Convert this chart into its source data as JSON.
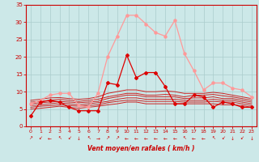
{
  "background_color": "#cce8e8",
  "grid_color": "#aacccc",
  "xlabel": "Vent moyen/en rafales ( km/h )",
  "xlim": [
    -0.5,
    23.5
  ],
  "ylim": [
    0,
    35
  ],
  "xticks": [
    0,
    1,
    2,
    3,
    4,
    5,
    6,
    7,
    8,
    9,
    10,
    11,
    12,
    13,
    14,
    15,
    16,
    17,
    18,
    19,
    20,
    21,
    22,
    23
  ],
  "yticks": [
    0,
    5,
    10,
    15,
    20,
    25,
    30,
    35
  ],
  "line_light": {
    "color": "#ff9999",
    "x": [
      0,
      1,
      2,
      3,
      4,
      5,
      6,
      7,
      8,
      9,
      10,
      11,
      12,
      13,
      14,
      15,
      16,
      17,
      18,
      19,
      20,
      21,
      22,
      23
    ],
    "y": [
      6.5,
      7.5,
      9.0,
      9.5,
      9.5,
      6.0,
      5.5,
      9.5,
      20.0,
      26.0,
      32.0,
      32.0,
      29.5,
      27.0,
      26.0,
      30.5,
      21.0,
      16.0,
      10.5,
      12.5,
      12.5,
      11.0,
      10.5,
      8.5
    ]
  },
  "line_dark": {
    "color": "#dd0000",
    "x": [
      0,
      1,
      2,
      3,
      4,
      5,
      6,
      7,
      8,
      9,
      10,
      11,
      12,
      13,
      14,
      15,
      16,
      17,
      18,
      19,
      20,
      21,
      22,
      23
    ],
    "y": [
      3.0,
      7.0,
      7.5,
      7.0,
      5.5,
      4.5,
      4.5,
      4.5,
      12.5,
      12.0,
      20.5,
      14.0,
      15.5,
      15.5,
      11.5,
      6.5,
      6.5,
      9.0,
      8.5,
      5.5,
      7.0,
      6.5,
      5.5,
      5.5
    ]
  },
  "lines_flat": [
    {
      "color": "#cc0000",
      "x": [
        0,
        1,
        2,
        3,
        4,
        5,
        6,
        7,
        8,
        9,
        10,
        11,
        12,
        13,
        14,
        15,
        16,
        17,
        18,
        19,
        20,
        21,
        22,
        23
      ],
      "y": [
        7.5,
        7.8,
        8.2,
        8.3,
        8.0,
        7.8,
        8.0,
        8.5,
        9.5,
        10.0,
        10.5,
        10.5,
        10.0,
        10.0,
        10.2,
        10.0,
        9.5,
        9.5,
        9.5,
        9.8,
        9.5,
        9.0,
        8.5,
        8.0
      ]
    },
    {
      "color": "#cc0000",
      "x": [
        0,
        1,
        2,
        3,
        4,
        5,
        6,
        7,
        8,
        9,
        10,
        11,
        12,
        13,
        14,
        15,
        16,
        17,
        18,
        19,
        20,
        21,
        22,
        23
      ],
      "y": [
        7.0,
        7.2,
        7.5,
        7.8,
        7.5,
        7.2,
        7.5,
        7.8,
        8.5,
        9.0,
        9.5,
        9.5,
        9.0,
        9.0,
        9.2,
        9.0,
        8.5,
        9.0,
        9.0,
        9.2,
        8.8,
        8.5,
        8.0,
        7.5
      ]
    },
    {
      "color": "#cc0000",
      "x": [
        0,
        1,
        2,
        3,
        4,
        5,
        6,
        7,
        8,
        9,
        10,
        11,
        12,
        13,
        14,
        15,
        16,
        17,
        18,
        19,
        20,
        21,
        22,
        23
      ],
      "y": [
        6.5,
        6.8,
        7.0,
        7.2,
        7.0,
        6.8,
        7.0,
        7.2,
        8.0,
        8.5,
        9.0,
        9.0,
        8.5,
        8.5,
        8.5,
        8.5,
        8.0,
        8.2,
        8.2,
        8.5,
        8.0,
        8.0,
        7.5,
        7.0
      ]
    },
    {
      "color": "#cc0000",
      "x": [
        0,
        1,
        2,
        3,
        4,
        5,
        6,
        7,
        8,
        9,
        10,
        11,
        12,
        13,
        14,
        15,
        16,
        17,
        18,
        19,
        20,
        21,
        22,
        23
      ],
      "y": [
        6.0,
        6.2,
        6.5,
        6.8,
        6.5,
        6.2,
        6.5,
        6.8,
        7.2,
        7.8,
        8.2,
        8.2,
        7.8,
        7.8,
        7.8,
        7.8,
        7.5,
        7.5,
        7.5,
        7.8,
        7.5,
        7.5,
        7.0,
        6.5
      ]
    },
    {
      "color": "#cc0000",
      "x": [
        0,
        1,
        2,
        3,
        4,
        5,
        6,
        7,
        8,
        9,
        10,
        11,
        12,
        13,
        14,
        15,
        16,
        17,
        18,
        19,
        20,
        21,
        22,
        23
      ],
      "y": [
        5.5,
        5.8,
        6.0,
        6.2,
        6.0,
        5.8,
        6.0,
        6.2,
        6.8,
        7.2,
        7.5,
        7.5,
        7.2,
        7.2,
        7.2,
        7.2,
        7.0,
        7.0,
        7.0,
        7.2,
        7.0,
        7.0,
        6.5,
        6.0
      ]
    },
    {
      "color": "#cc0000",
      "x": [
        0,
        1,
        2,
        3,
        4,
        5,
        6,
        7,
        8,
        9,
        10,
        11,
        12,
        13,
        14,
        15,
        16,
        17,
        18,
        19,
        20,
        21,
        22,
        23
      ],
      "y": [
        5.0,
        5.2,
        5.5,
        5.8,
        5.5,
        5.2,
        5.5,
        5.8,
        6.2,
        6.5,
        7.0,
        7.0,
        6.5,
        6.5,
        6.5,
        6.5,
        6.5,
        6.5,
        6.5,
        6.5,
        6.2,
        6.2,
        6.0,
        5.5
      ]
    }
  ],
  "wind_arrow_color": "#cc0000",
  "wind_directions": [
    45,
    225,
    270,
    315,
    225,
    180,
    315,
    90,
    45,
    45,
    270,
    270,
    270,
    270,
    270,
    270,
    315,
    270,
    270,
    315,
    225,
    180,
    225,
    180
  ]
}
